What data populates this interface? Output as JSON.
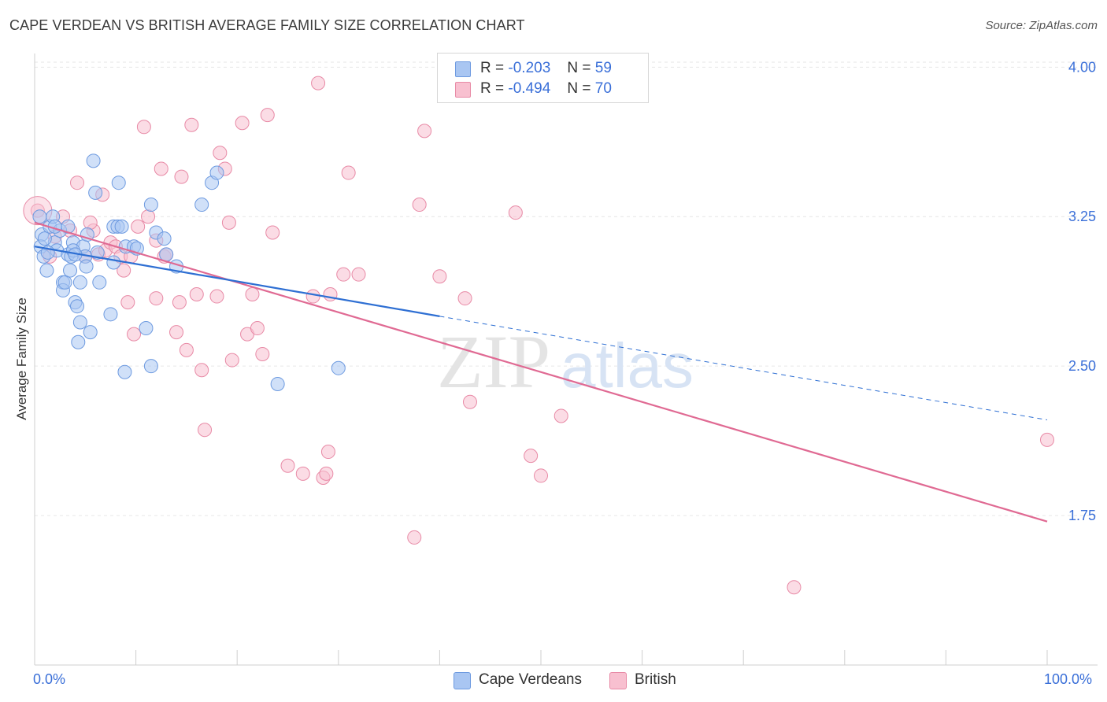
{
  "title": "CAPE VERDEAN VS BRITISH AVERAGE FAMILY SIZE CORRELATION CHART",
  "source": "Source: ZipAtlas.com",
  "watermark": {
    "zip": "ZIP",
    "atlas": "atlas"
  },
  "legend": {
    "r_label": "R =",
    "n_label": "N =",
    "items": [
      {
        "r": "-0.203",
        "n": "59",
        "color": "#a9c6f2",
        "border": "#6d9ae0"
      },
      {
        "r": "-0.494",
        "n": "70",
        "color": "#f8c0d0",
        "border": "#e88aa6"
      }
    ]
  },
  "bottom_legend": [
    {
      "label": "Cape Verdeans",
      "color": "#a9c6f2",
      "border": "#6d9ae0"
    },
    {
      "label": "British",
      "color": "#f8c0d0",
      "border": "#e88aa6"
    }
  ],
  "chart_data": {
    "type": "scatter",
    "xlabel": "",
    "ylabel": "Average Family Size",
    "xlim": [
      0,
      100
    ],
    "ylim": [
      1.0,
      4.1
    ],
    "x_tick_labels": [
      "0.0%",
      "100.0%"
    ],
    "y_ticks": [
      1.75,
      2.5,
      3.25,
      4.0
    ],
    "y_tick_labels": [
      "1.75",
      "2.50",
      "3.25",
      "4.00"
    ],
    "series": [
      {
        "name": "Cape Verdeans",
        "color": "#6d9ae0",
        "fill": "#a9c6f2",
        "line_color": "#2e6fd3",
        "trend": {
          "x0": 0,
          "y0": 3.1,
          "x_solid_end": 40,
          "y_solid_end": 2.75,
          "x1": 100,
          "y1": 2.23
        },
        "points": [
          [
            0.5,
            3.25
          ],
          [
            0.7,
            3.16
          ],
          [
            0.6,
            3.1
          ],
          [
            0.9,
            3.05
          ],
          [
            1.2,
            2.98
          ],
          [
            1.5,
            3.2
          ],
          [
            1.8,
            3.25
          ],
          [
            2.0,
            3.12
          ],
          [
            2.2,
            3.08
          ],
          [
            2.5,
            3.18
          ],
          [
            2.8,
            2.92
          ],
          [
            2.8,
            2.88
          ],
          [
            3.0,
            2.92
          ],
          [
            3.3,
            3.2
          ],
          [
            3.3,
            3.06
          ],
          [
            3.5,
            2.98
          ],
          [
            3.6,
            3.05
          ],
          [
            3.8,
            3.12
          ],
          [
            4.0,
            2.82
          ],
          [
            4.2,
            2.8
          ],
          [
            4.3,
            2.62
          ],
          [
            4.5,
            2.92
          ],
          [
            4.5,
            2.72
          ],
          [
            4.8,
            3.1
          ],
          [
            5.0,
            3.05
          ],
          [
            5.1,
            3.0
          ],
          [
            5.2,
            3.16
          ],
          [
            5.5,
            2.67
          ],
          [
            5.8,
            3.53
          ],
          [
            6.0,
            3.37
          ],
          [
            6.2,
            3.07
          ],
          [
            6.4,
            2.92
          ],
          [
            7.5,
            2.76
          ],
          [
            7.8,
            3.02
          ],
          [
            7.8,
            3.2
          ],
          [
            8.2,
            3.2
          ],
          [
            8.3,
            3.42
          ],
          [
            8.6,
            3.2
          ],
          [
            8.9,
            2.47
          ],
          [
            9.0,
            3.1
          ],
          [
            9.8,
            3.1
          ],
          [
            10.1,
            3.09
          ],
          [
            11.0,
            2.69
          ],
          [
            11.5,
            3.31
          ],
          [
            11.5,
            2.5
          ],
          [
            12.0,
            3.17
          ],
          [
            12.8,
            3.14
          ],
          [
            13.0,
            3.06
          ],
          [
            14.0,
            3.0
          ],
          [
            16.5,
            3.31
          ],
          [
            17.5,
            3.42
          ],
          [
            18.0,
            3.47
          ],
          [
            24.0,
            2.41
          ],
          [
            30.0,
            2.49
          ],
          [
            1.0,
            3.14
          ],
          [
            1.3,
            3.07
          ],
          [
            2.0,
            3.2
          ],
          [
            3.8,
            3.08
          ],
          [
            4.0,
            3.06
          ]
        ]
      },
      {
        "name": "British",
        "color": "#e88aa6",
        "fill": "#f8c0d0",
        "line_color": "#e06a93",
        "trend": {
          "x0": 0,
          "y0": 3.22,
          "x1": 100,
          "y1": 1.72
        },
        "points": [
          [
            0.3,
            3.28
          ],
          [
            1.5,
            3.05
          ],
          [
            2.0,
            3.15
          ],
          [
            2.8,
            3.25
          ],
          [
            3.5,
            3.18
          ],
          [
            4.2,
            3.42
          ],
          [
            5.0,
            3.05
          ],
          [
            5.8,
            3.18
          ],
          [
            6.3,
            3.06
          ],
          [
            6.7,
            3.36
          ],
          [
            7.0,
            3.08
          ],
          [
            7.5,
            3.12
          ],
          [
            8.0,
            3.1
          ],
          [
            8.5,
            3.05
          ],
          [
            8.8,
            2.98
          ],
          [
            9.2,
            2.82
          ],
          [
            9.8,
            2.66
          ],
          [
            10.2,
            3.2
          ],
          [
            10.8,
            3.7
          ],
          [
            11.2,
            3.25
          ],
          [
            12.0,
            3.13
          ],
          [
            12.5,
            3.49
          ],
          [
            12.8,
            3.05
          ],
          [
            13.0,
            3.06
          ],
          [
            14.0,
            2.67
          ],
          [
            14.3,
            2.82
          ],
          [
            14.5,
            3.45
          ],
          [
            15.0,
            2.58
          ],
          [
            15.5,
            3.71
          ],
          [
            16.0,
            2.86
          ],
          [
            16.5,
            2.48
          ],
          [
            16.8,
            2.18
          ],
          [
            18.0,
            2.85
          ],
          [
            18.3,
            3.57
          ],
          [
            18.8,
            3.49
          ],
          [
            19.2,
            3.22
          ],
          [
            19.5,
            2.53
          ],
          [
            20.5,
            3.72
          ],
          [
            21.0,
            2.66
          ],
          [
            22.0,
            2.69
          ],
          [
            22.5,
            2.56
          ],
          [
            23.0,
            3.76
          ],
          [
            23.5,
            3.17
          ],
          [
            25.0,
            2.0
          ],
          [
            26.5,
            1.96
          ],
          [
            27.5,
            2.85
          ],
          [
            28.0,
            3.92
          ],
          [
            28.5,
            1.94
          ],
          [
            28.8,
            1.96
          ],
          [
            29.0,
            2.07
          ],
          [
            29.2,
            2.86
          ],
          [
            30.5,
            2.96
          ],
          [
            31.0,
            3.47
          ],
          [
            32.0,
            2.96
          ],
          [
            37.5,
            1.64
          ],
          [
            38.0,
            3.31
          ],
          [
            38.5,
            3.68
          ],
          [
            40.0,
            2.95
          ],
          [
            42.5,
            2.84
          ],
          [
            43.0,
            2.32
          ],
          [
            49.0,
            2.05
          ],
          [
            47.5,
            3.27
          ],
          [
            50.0,
            1.95
          ],
          [
            52.0,
            2.25
          ],
          [
            75.0,
            1.39
          ],
          [
            100.0,
            2.13
          ],
          [
            5.5,
            3.22
          ],
          [
            12.0,
            2.84
          ],
          [
            21.5,
            2.86
          ],
          [
            9.5,
            3.05
          ]
        ]
      }
    ]
  }
}
